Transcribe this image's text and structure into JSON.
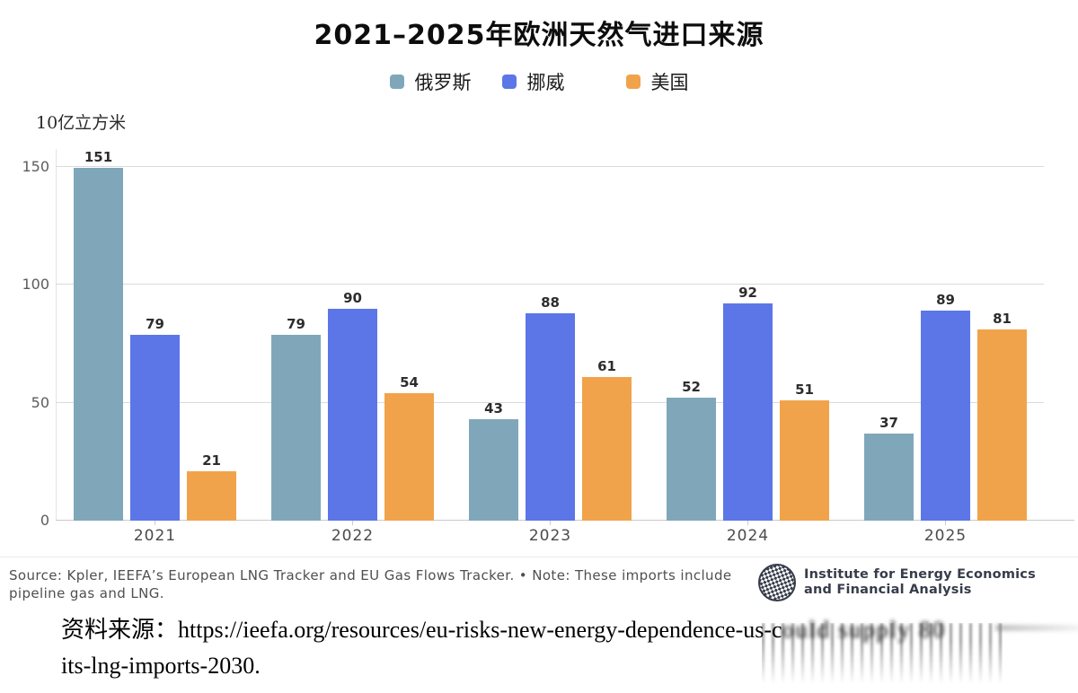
{
  "chart_data": {
    "type": "bar",
    "title": "2021–2025年欧洲天然气进口来源",
    "ylabel": "10亿立方米",
    "categories": [
      "2021",
      "2022",
      "2023",
      "2024",
      "2025"
    ],
    "series": [
      {
        "key": "russia",
        "name": "俄罗斯",
        "color": "#7fa7b9",
        "values": [
          151,
          79,
          43,
          52,
          37
        ]
      },
      {
        "key": "norway",
        "name": "挪威",
        "color": "#5c76e8",
        "values": [
          79,
          90,
          88,
          92,
          89
        ]
      },
      {
        "key": "us",
        "name": "美国",
        "color": "#f1a34b",
        "values": [
          21,
          54,
          61,
          51,
          81
        ]
      }
    ],
    "yticks": [
      0,
      50,
      100,
      150
    ],
    "ylim": [
      0,
      160
    ],
    "grid": true,
    "legend_position": "top",
    "value_labels": true
  },
  "footer": {
    "source_text": "Source: Kpler, IEEFA’s European LNG Tracker and EU Gas Flows Tracker. • Note: These imports include pipeline gas and LNG.",
    "logo": {
      "icon": "ieefa-globe-icon",
      "line1": "Institute for Energy Economics",
      "line2": "and Financial Analysis"
    }
  },
  "citation": {
    "prefix": "资料来源：https://ieefa.org/resources/eu-risks-new-energy-dependence-us-c",
    "smeared": "ould supply 80",
    "line2": "its-lng-imports-2030."
  },
  "colors": {
    "russia": "#7fa7b9",
    "norway": "#5c76e8",
    "us": "#f1a34b",
    "gridline": "#dadada",
    "logo_navy": "#363c4a"
  }
}
